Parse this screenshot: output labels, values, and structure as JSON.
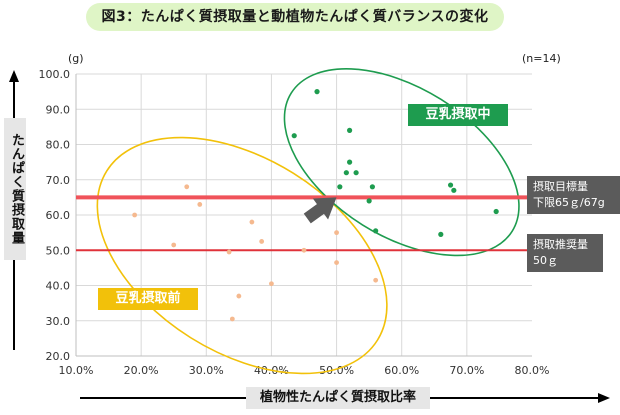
{
  "chart_data": {
    "type": "scatter",
    "title": "図3：たんぱく質摂取量と動植物たんぱく質バランスの変化",
    "xlabel": "植物性たんぱく質摂取比率",
    "ylabel": "たんぱく質摂取量",
    "y_unit": "(g)",
    "sample_note": "(n=14)",
    "xlim": [
      10,
      80
    ],
    "ylim": [
      20,
      100
    ],
    "x_ticks": [
      "10.0%",
      "20.0%",
      "30.0%",
      "40.0%",
      "50.0%",
      "60.0%",
      "70.0%",
      "80.0%"
    ],
    "y_ticks": [
      "20.0",
      "30.0",
      "40.0",
      "50.0",
      "60.0",
      "70.0",
      "80.0",
      "90.0",
      "100.0"
    ],
    "grid": true,
    "series": [
      {
        "name": "豆乳摂取前",
        "color": "#f5b98f",
        "points": [
          [
            19.0,
            60.0
          ],
          [
            25.0,
            51.5
          ],
          [
            27.0,
            68.0
          ],
          [
            29.0,
            63.0
          ],
          [
            33.5,
            49.5
          ],
          [
            34.0,
            30.5
          ],
          [
            35.0,
            37.0
          ],
          [
            37.0,
            58.0
          ],
          [
            38.5,
            52.5
          ],
          [
            40.0,
            40.5
          ],
          [
            45.0,
            50.0
          ],
          [
            50.0,
            55.0
          ],
          [
            50.0,
            46.5
          ],
          [
            56.0,
            41.5
          ]
        ]
      },
      {
        "name": "豆乳摂取中",
        "color": "#1e9c4f",
        "points": [
          [
            47.0,
            95.0
          ],
          [
            43.5,
            82.5
          ],
          [
            52.0,
            84.0
          ],
          [
            52.0,
            75.0
          ],
          [
            53.0,
            72.0
          ],
          [
            51.5,
            72.0
          ],
          [
            50.5,
            68.0
          ],
          [
            55.0,
            64.0
          ],
          [
            55.5,
            68.0
          ],
          [
            56.0,
            55.5
          ],
          [
            66.0,
            54.5
          ],
          [
            67.5,
            68.5
          ],
          [
            68.0,
            67.0
          ],
          [
            74.5,
            61.0
          ]
        ]
      }
    ],
    "reference_lines": [
      {
        "y": 65,
        "label_line1": "摂取目標量",
        "label_line2": "下限65ｇ/67g",
        "color": "#f0535a"
      },
      {
        "y": 50,
        "label_line1": "摂取推奨量",
        "label_line2": "50ｇ",
        "color": "#e0323a"
      }
    ],
    "annotations": {
      "group_before_label": "豆乳摂取前",
      "group_during_label": "豆乳摂取中",
      "arrow": {
        "from": [
          45.5,
          59
        ],
        "to": [
          50,
          65
        ]
      }
    },
    "ellipse_colors": {
      "before": "#f2c10a",
      "during": "#1e9c4f"
    },
    "arrow_color": "#5a5a5a"
  }
}
